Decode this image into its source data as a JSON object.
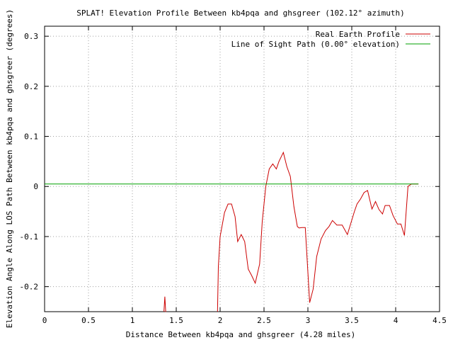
{
  "chart_data": {
    "type": "line",
    "title": "SPLAT! Elevation Profile Between kb4pqa and ghsgreer (102.12° azimuth)",
    "xlabel": "Distance Between kb4pqa and ghsgreer (4.28 miles)",
    "ylabel": "Elevation Angle Along LOS Path Between kb4pqa and ghsgreer (degrees)",
    "xlim": [
      0,
      4.5
    ],
    "ylim": [
      -0.25,
      0.32
    ],
    "x_ticks": [
      "0",
      "0.5",
      "1",
      "1.5",
      "2",
      "2.5",
      "3",
      "3.5",
      "4",
      "4.5"
    ],
    "x_tick_values": [
      0,
      0.5,
      1,
      1.5,
      2,
      2.5,
      3,
      3.5,
      4,
      4.5
    ],
    "y_ticks": [
      "-0.2",
      "-0.1",
      "0",
      "0.1",
      "0.2",
      "0.3"
    ],
    "y_tick_values": [
      -0.2,
      -0.1,
      0,
      0.1,
      0.2,
      0.3
    ],
    "grid": true,
    "legend_position": "top-right",
    "series": [
      {
        "name": "Real Earth Profile",
        "color": "#cc0000",
        "x": [
          1.36,
          1.37,
          1.38,
          1.385,
          1.97,
          1.98,
          2.0,
          2.05,
          2.09,
          2.13,
          2.17,
          2.2,
          2.24,
          2.28,
          2.32,
          2.36,
          2.4,
          2.45,
          2.48,
          2.52,
          2.56,
          2.6,
          2.64,
          2.67,
          2.72,
          2.76,
          2.8,
          2.84,
          2.88,
          2.9,
          2.93,
          2.97,
          3.02,
          3.06,
          3.1,
          3.15,
          3.2,
          3.24,
          3.28,
          3.33,
          3.39,
          3.45,
          3.53,
          3.56,
          3.6,
          3.64,
          3.68,
          3.73,
          3.77,
          3.81,
          3.85,
          3.88,
          3.93,
          3.97,
          4.02,
          4.06,
          4.1,
          4.14,
          4.18,
          4.22,
          4.26
        ],
        "y": [
          -0.25,
          -0.22,
          -0.25,
          -0.25,
          -0.25,
          -0.16,
          -0.1,
          -0.052,
          -0.035,
          -0.035,
          -0.06,
          -0.11,
          -0.096,
          -0.11,
          -0.165,
          -0.178,
          -0.193,
          -0.155,
          -0.07,
          0.0,
          0.035,
          0.045,
          0.035,
          0.05,
          0.068,
          0.04,
          0.02,
          -0.04,
          -0.08,
          -0.083,
          -0.082,
          -0.082,
          -0.232,
          -0.205,
          -0.14,
          -0.105,
          -0.088,
          -0.08,
          -0.068,
          -0.077,
          -0.077,
          -0.096,
          -0.05,
          -0.035,
          -0.025,
          -0.012,
          -0.008,
          -0.045,
          -0.03,
          -0.046,
          -0.055,
          -0.038,
          -0.038,
          -0.058,
          -0.075,
          -0.075,
          -0.098,
          0.0,
          0.005,
          0.005,
          0.005
        ]
      },
      {
        "name": "Line of Sight Path (0.00° elevation)",
        "color": "#00a000",
        "x": [
          0,
          4.26
        ],
        "y": [
          0.005,
          0.005
        ]
      }
    ]
  }
}
